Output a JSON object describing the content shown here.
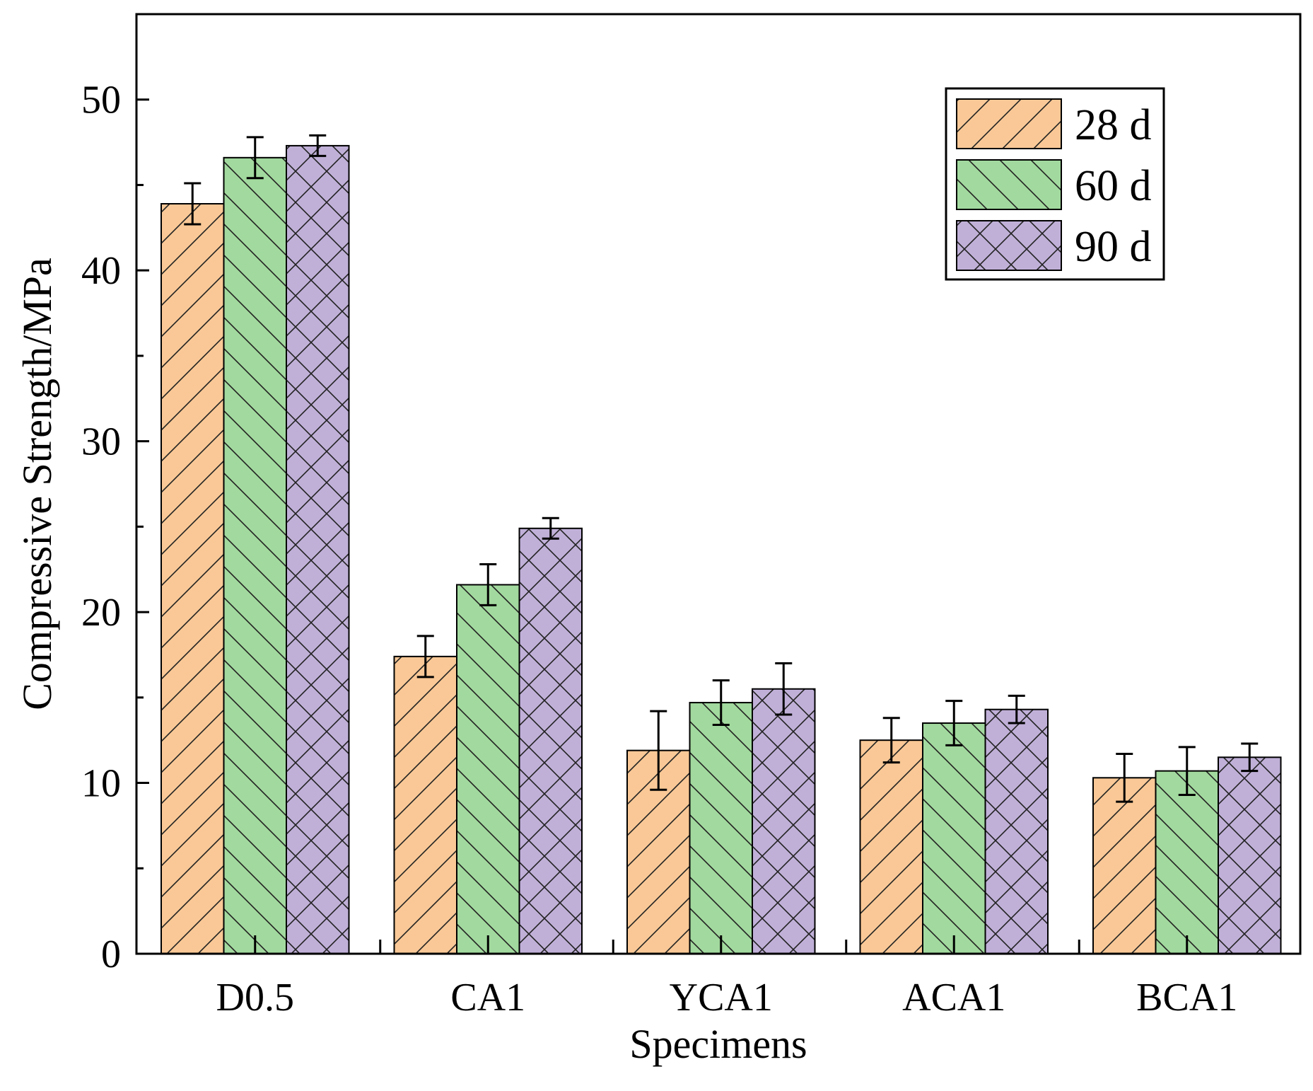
{
  "chart_data": {
    "type": "bar",
    "title": "",
    "xlabel": "Specimens",
    "ylabel": "Compressive Strength/MPa",
    "ylim": [
      0,
      55
    ],
    "yticks": [
      0,
      10,
      20,
      30,
      40,
      50
    ],
    "grid": false,
    "legend_position": "top-right",
    "categories": [
      "D0.5",
      "CA1",
      "YCA1",
      "ACA1",
      "BCA1"
    ],
    "series": [
      {
        "name": "28 d",
        "color": "#F9C896",
        "pattern": "forward-diagonal",
        "values": [
          43.9,
          17.4,
          11.9,
          12.5,
          10.3
        ],
        "errors": [
          1.2,
          1.2,
          2.3,
          1.3,
          1.4
        ]
      },
      {
        "name": "60 d",
        "color": "#A2D99E",
        "pattern": "back-diagonal",
        "values": [
          46.6,
          21.6,
          14.7,
          13.5,
          10.7
        ],
        "errors": [
          1.2,
          1.2,
          1.3,
          1.3,
          1.4
        ]
      },
      {
        "name": "90 d",
        "color": "#C0B0D8",
        "pattern": "crosshatch",
        "values": [
          47.3,
          24.9,
          15.5,
          14.3,
          11.5
        ],
        "errors": [
          0.6,
          0.6,
          1.5,
          0.8,
          0.8
        ]
      }
    ]
  }
}
